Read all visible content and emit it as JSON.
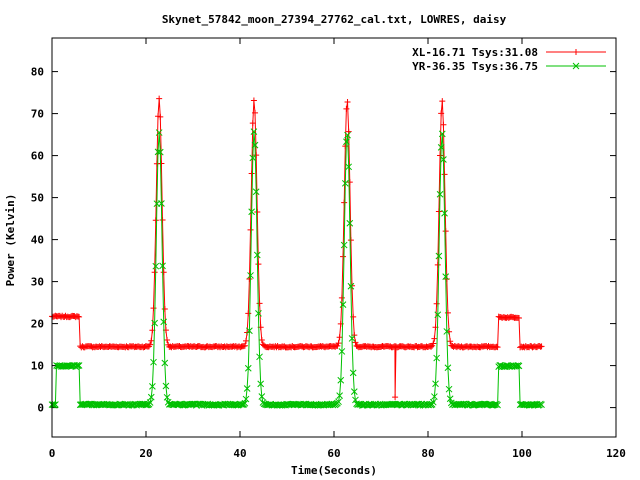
{
  "chart_data": {
    "type": "line",
    "title": "Skynet_57842_moon_27394_27762_cal.txt, LOWRES, daisy",
    "xlabel": "Time(Seconds)",
    "ylabel": "Power (Kelvin)",
    "xlim": [
      0,
      120
    ],
    "ylim": [
      -7,
      88
    ],
    "xticks": [
      0,
      20,
      40,
      60,
      80,
      100,
      120
    ],
    "yticks": [
      0,
      10,
      20,
      30,
      40,
      50,
      60,
      70,
      80
    ],
    "grid": false,
    "legend_position": "top-right",
    "series": [
      {
        "name": "XL-16.71 Tsys:31.08",
        "color": "#ff0000",
        "marker": "plus",
        "baseline": 14.5,
        "segments": [
          {
            "type": "cal",
            "x0": 0,
            "x1": 6,
            "level": 21.7
          },
          {
            "type": "cal",
            "x0": 95,
            "x1": 99.5,
            "level": 21.5
          }
        ],
        "peaks": [
          {
            "x": 22.8,
            "value": 73.5
          },
          {
            "x": 43.0,
            "value": 73.3
          },
          {
            "x": 62.8,
            "value": 73.2
          },
          {
            "x": 83.0,
            "value": 73.0
          }
        ],
        "dips": [
          {
            "x": 73.0,
            "value": 2.5
          }
        ]
      },
      {
        "name": "YR-36.35 Tsys:36.75",
        "color": "#00c000",
        "marker": "cross",
        "baseline": 0.7,
        "segments": [
          {
            "type": "cal",
            "x0": 0.8,
            "x1": 6,
            "level": 9.9
          },
          {
            "type": "cal",
            "x0": 95,
            "x1": 99.5,
            "level": 9.9
          }
        ],
        "peaks": [
          {
            "x": 22.8,
            "value": 65.5
          },
          {
            "x": 43.0,
            "value": 65.8
          },
          {
            "x": 62.8,
            "value": 65.5
          },
          {
            "x": 83.0,
            "value": 65.3
          }
        ],
        "dips": []
      }
    ]
  }
}
